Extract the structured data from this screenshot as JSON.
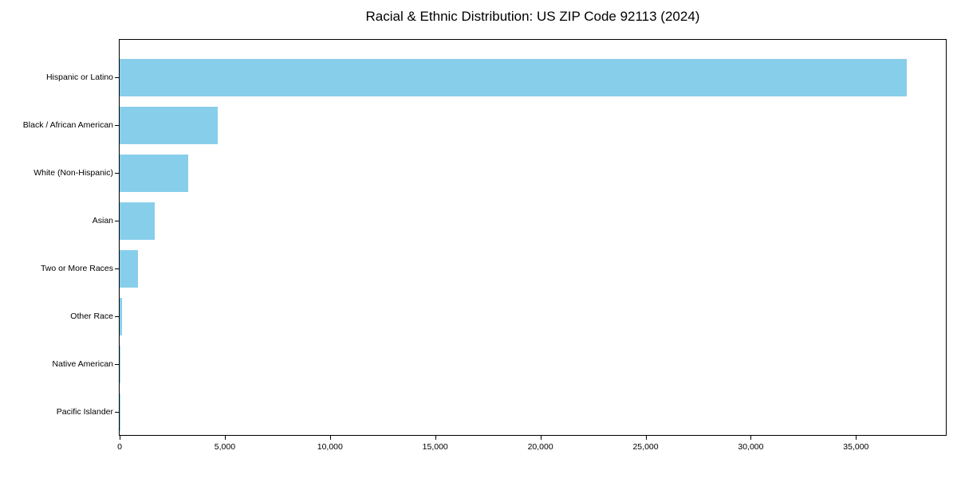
{
  "page": {
    "background": "#ffffff",
    "text_color": "#000000"
  },
  "chart_data": {
    "type": "bar",
    "orientation": "horizontal",
    "title": "Racial & Ethnic Distribution: US ZIP Code 92113 (2024)",
    "categories": [
      "Hispanic or Latino",
      "Black / African American",
      "White (Non-Hispanic)",
      "Asian",
      "Two or More Races",
      "Other Race",
      "Native American",
      "Pacific Islander"
    ],
    "values": [
      37400,
      4670,
      3260,
      1670,
      860,
      130,
      30,
      15
    ],
    "xlabel": "",
    "ylabel": "",
    "xlim": [
      0,
      39270
    ],
    "x_ticks": [
      0,
      5000,
      10000,
      15000,
      20000,
      25000,
      30000,
      35000
    ],
    "x_tick_labels": [
      "0",
      "5,000",
      "10,000",
      "15,000",
      "20,000",
      "25,000",
      "30,000",
      "35,000"
    ],
    "bar_color": "#87CEEB",
    "axis_color": "#000000",
    "grid": false,
    "legend": null
  }
}
